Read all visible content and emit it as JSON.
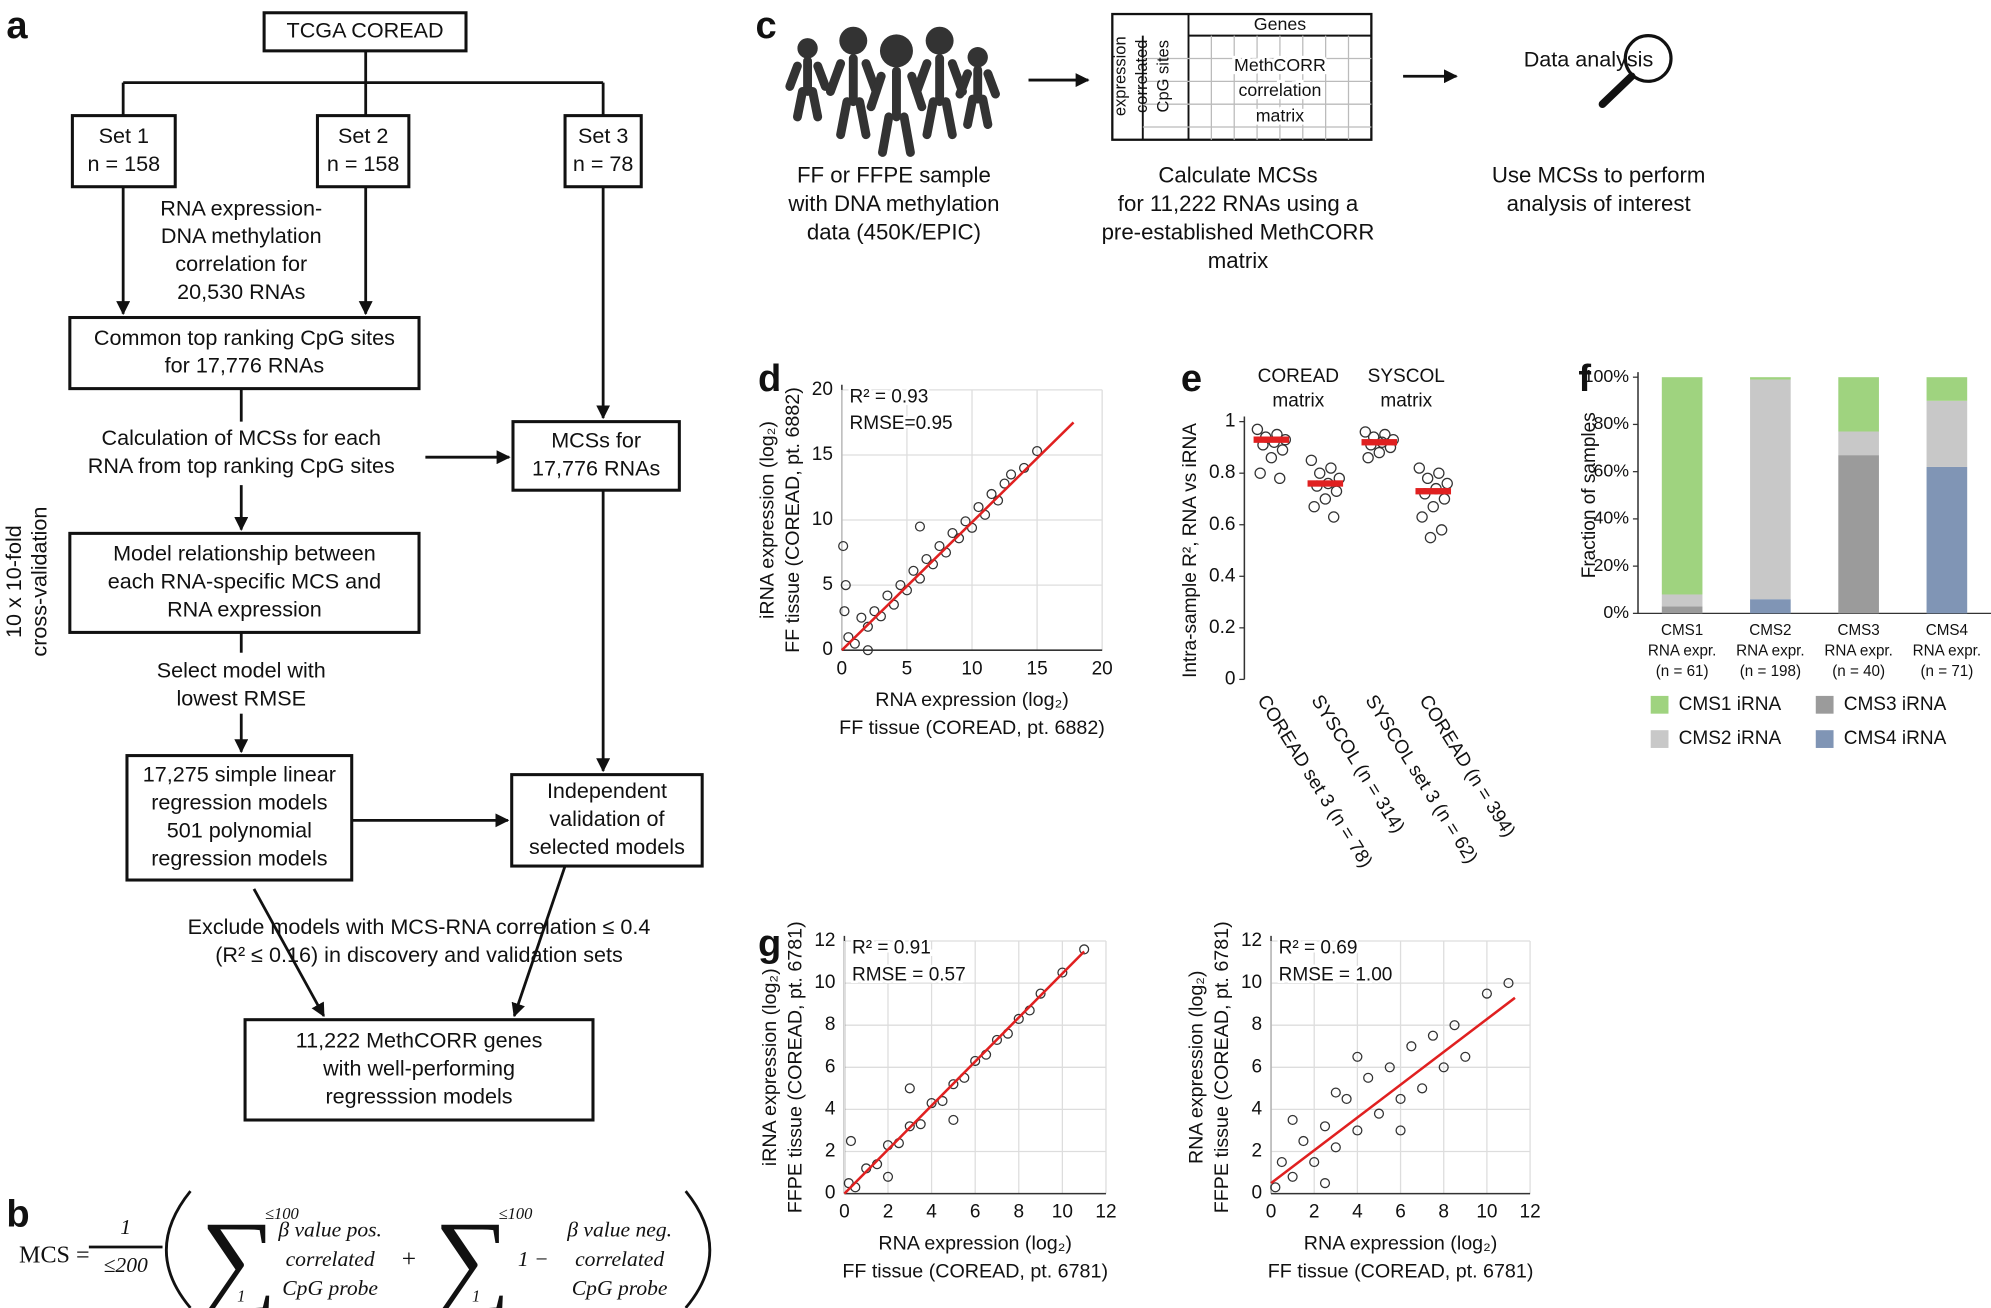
{
  "panel_labels": [
    "a",
    "b",
    "c",
    "d",
    "e",
    "f",
    "g"
  ],
  "panel_a": {
    "nodes": [
      {
        "lines": [
          "TCGA COREAD"
        ]
      },
      {
        "lines": [
          "Set 1",
          "n = 158"
        ]
      },
      {
        "lines": [
          "Set 2",
          "n = 158"
        ]
      },
      {
        "lines": [
          "Set 3",
          "n = 78"
        ]
      },
      {
        "lines": [
          "RNA expression-",
          "DNA methylation",
          "correlation for",
          "20,530 RNAs"
        ]
      },
      {
        "lines": [
          "Common top ranking CpG sites",
          "for 17,776 RNAs"
        ]
      },
      {
        "lines": [
          "Calculation of MCSs for each",
          "RNA from top ranking CpG sites"
        ]
      },
      {
        "lines": [
          "MCSs for",
          "17,776 RNAs"
        ]
      },
      {
        "lines": [
          "Model relationship between",
          "each RNA-specific MCS and",
          "RNA expression"
        ]
      },
      {
        "lines": [
          "Select model with",
          "lowest RMSE"
        ]
      },
      {
        "lines": [
          "17,275 simple linear",
          "regression models",
          "501 polynomial",
          "regression models"
        ]
      },
      {
        "lines": [
          "Independent",
          "validation of",
          "selected models"
        ]
      },
      {
        "lines": [
          "Exclude models with MCS-RNA correlation ≤ 0.4",
          "(R² ≤ 0.16) in discovery and validation sets"
        ]
      },
      {
        "lines": [
          "11,222 MethCORR genes",
          "with well-performing",
          "regresssion models"
        ]
      }
    ],
    "side_label": [
      "10 x 10-fold",
      "cross-validation"
    ]
  },
  "panel_b": {
    "lhs": "MCS =",
    "numerator": "1",
    "denominator": "≤200",
    "upper": "≤100",
    "lower": "1",
    "term1": [
      "β value pos.",
      "correlated",
      "CpG probe"
    ],
    "plus": "+",
    "minus": "1 −",
    "term2": [
      "β value neg.",
      "correlated",
      "CpG probe"
    ]
  },
  "panel_c": {
    "matrix_header": "Genes",
    "matrix_side": [
      "expression",
      "correlated",
      "CpG sites"
    ],
    "matrix_body": [
      "MethCORR",
      "correlation",
      "matrix"
    ],
    "analysis": "Data analysis",
    "captions": [
      [
        "FF or FFPE sample",
        "with DNA methylation",
        "data (450K/EPIC)"
      ],
      [
        "Calculate MCSs",
        "for 11,222 RNAs using a",
        "pre-established MethCORR",
        "matrix"
      ],
      [
        "Use MCSs to perform",
        "analysis of interest"
      ]
    ]
  },
  "chart_data": [
    {
      "type": "scatter",
      "annotations": [
        "R² = 0.93",
        "RMSE=0.95"
      ],
      "xlabel": [
        "RNA expression (log₂)",
        "FF tissue (COREAD, pt. 6882)"
      ],
      "ylabel": [
        "iRNA expression (log₂)",
        "FF tissue (COREAD, pt. 6882)"
      ],
      "xlim": [
        0,
        20
      ],
      "ylim": [
        0,
        20
      ],
      "xticks": [
        0,
        5,
        10,
        15,
        20
      ],
      "yticks": [
        0,
        5,
        10,
        15,
        20
      ],
      "grid": true,
      "color": "#333333",
      "x": [
        0.2,
        0.5,
        1,
        1.5,
        2,
        2.5,
        3,
        3.5,
        4,
        4.5,
        5,
        5.5,
        6,
        6.5,
        7,
        7.5,
        8,
        8.5,
        9,
        9.5,
        10,
        10.5,
        11,
        11.5,
        12,
        12.5,
        13,
        14,
        15,
        0.3,
        0.1,
        2,
        6
      ],
      "values": [
        3,
        1,
        0.5,
        2.5,
        1.8,
        3,
        2.6,
        4.2,
        3.5,
        5,
        4.6,
        6.1,
        5.5,
        7,
        6.6,
        8,
        7.5,
        9,
        8.6,
        9.9,
        9.4,
        11,
        10.4,
        12,
        11.5,
        12.8,
        13.5,
        14,
        15.3,
        5,
        8,
        0,
        9.5
      ],
      "fit_line": {
        "x": [
          0,
          17.8
        ],
        "values": [
          0,
          17.5
        ],
        "color": "#e02020"
      }
    },
    {
      "type": "strip",
      "group_labels": [
        [
          "COREAD",
          "matrix"
        ],
        [
          "SYSCOL",
          "matrix"
        ]
      ],
      "ylabel": "Intra-sample R², RNA vs iRNA",
      "categories": [
        "COREAD set 3 (n = 78)",
        "SYSCOL (n = 314)",
        "SYSCOL set 3 (n = 62)",
        "COREAD (n = 394)"
      ],
      "ylim": [
        0,
        1
      ],
      "yticks": [
        0,
        0.2,
        0.4,
        0.6,
        0.8,
        1
      ],
      "grid": false,
      "color": "#333333",
      "median_color": "#e02020",
      "series": [
        {
          "values": [
            0.97,
            0.95,
            0.94,
            0.93,
            0.92,
            0.91,
            0.89,
            0.86,
            0.8,
            0.78
          ]
        },
        {
          "values": [
            0.85,
            0.82,
            0.8,
            0.78,
            0.76,
            0.75,
            0.73,
            0.7,
            0.67,
            0.63
          ]
        },
        {
          "values": [
            0.96,
            0.95,
            0.94,
            0.93,
            0.92,
            0.91,
            0.9,
            0.88,
            0.86
          ]
        },
        {
          "values": [
            0.82,
            0.8,
            0.78,
            0.76,
            0.74,
            0.72,
            0.7,
            0.67,
            0.63,
            0.58,
            0.55
          ]
        }
      ],
      "medians": [
        0.93,
        0.76,
        0.92,
        0.73
      ]
    },
    {
      "type": "stacked_bar",
      "ylabel": "Fraction of samples",
      "categories": [
        "CMS1",
        "CMS2",
        "CMS3",
        "CMS4"
      ],
      "category_subtitle": "RNA expr.",
      "category_notes": [
        "(n = 61)",
        "(n = 198)",
        "(n = 40)",
        "(n = 71)"
      ],
      "ylim": [
        0,
        100
      ],
      "yticks": [
        {
          "value": 0,
          "label": "0%"
        },
        {
          "value": 20,
          "label": "20%"
        },
        {
          "value": 40,
          "label": "40%"
        },
        {
          "value": 60,
          "label": "60%"
        },
        {
          "value": 80,
          "label": "80%"
        },
        {
          "value": 100,
          "label": "100%"
        }
      ],
      "grid": false,
      "series": [
        {
          "name": "CMS1 iRNA",
          "color": "#9fd37f",
          "values": [
            92,
            1,
            23,
            10
          ]
        },
        {
          "name": "CMS2 iRNA",
          "color": "#c8c8c8",
          "values": [
            5,
            93,
            10,
            28
          ]
        },
        {
          "name": "CMS3 iRNA",
          "color": "#9b9b9b",
          "values": [
            3,
            0,
            67,
            0
          ]
        },
        {
          "name": "CMS4 iRNA",
          "color": "#8095b5",
          "values": [
            0,
            6,
            0,
            62
          ]
        }
      ]
    },
    {
      "type": "scatter",
      "annotations": [
        "R² = 0.91",
        "RMSE = 0.57"
      ],
      "xlabel": [
        "RNA expression (log₂)",
        "FF tissue (COREAD, pt. 6781)"
      ],
      "ylabel": [
        "iRNA expression (log₂)",
        "FFPE tissue (COREAD, pt. 6781)"
      ],
      "xlim": [
        0,
        12
      ],
      "ylim": [
        0,
        12
      ],
      "xticks": [
        0,
        2,
        4,
        6,
        8,
        10,
        12
      ],
      "yticks": [
        0,
        2,
        4,
        6,
        8,
        10,
        12
      ],
      "grid": true,
      "color": "#333333",
      "x": [
        0.2,
        0.5,
        1,
        1.5,
        2,
        2.5,
        3,
        3.5,
        4,
        4.5,
        5,
        5.5,
        6,
        6.5,
        7,
        7.5,
        8,
        8.5,
        9,
        10,
        11,
        0.3,
        3,
        5,
        2
      ],
      "values": [
        0.5,
        0.3,
        1.2,
        1.4,
        2.3,
        2.4,
        3.2,
        3.3,
        4.3,
        4.4,
        5.2,
        5.5,
        6.3,
        6.6,
        7.3,
        7.6,
        8.3,
        8.7,
        9.5,
        10.5,
        11.6,
        2.5,
        5,
        3.5,
        0.8
      ],
      "fit_line": {
        "x": [
          0,
          11
        ],
        "values": [
          0,
          11.5
        ],
        "color": "#e02020"
      }
    },
    {
      "type": "scatter",
      "annotations": [
        "R² = 0.69",
        "RMSE = 1.00"
      ],
      "xlabel": [
        "RNA expression (log₂)",
        "FF tissue (COREAD, pt. 6781)"
      ],
      "ylabel": [
        "RNA expression (log₂)",
        "FFPE tissue (COREAD, pt. 6781)"
      ],
      "xlim": [
        0,
        12
      ],
      "ylim": [
        0,
        12
      ],
      "xticks": [
        0,
        2,
        4,
        6,
        8,
        10,
        12
      ],
      "yticks": [
        0,
        2,
        4,
        6,
        8,
        10,
        12
      ],
      "grid": true,
      "color": "#333333",
      "x": [
        0.2,
        0.5,
        1,
        1.5,
        2,
        2.5,
        3,
        3.5,
        4,
        4.5,
        5,
        5.5,
        6,
        6.5,
        7,
        7.5,
        8,
        8.5,
        9,
        10,
        11,
        1,
        2.5,
        4,
        6,
        3
      ],
      "values": [
        0.3,
        1.5,
        0.8,
        2.5,
        1.5,
        3.2,
        2.2,
        4.5,
        3,
        5.5,
        3.8,
        6,
        4.5,
        7,
        5,
        7.5,
        6,
        8,
        6.5,
        9.5,
        10,
        3.5,
        0.5,
        6.5,
        3,
        4.8
      ],
      "fit_line": {
        "x": [
          0,
          11.3
        ],
        "values": [
          0.5,
          9.3
        ],
        "color": "#e02020"
      }
    }
  ]
}
